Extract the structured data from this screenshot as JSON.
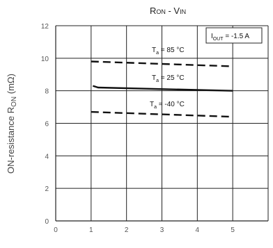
{
  "chart_data": {
    "type": "line",
    "title_main": "R",
    "title_main_sub": "ON",
    "title_sep": " - V",
    "title_sep_sub": "IN",
    "ylabel_main": "ON-resistance  R",
    "ylabel_sub": "ON",
    "ylabel_unit": "  (mΩ)",
    "xlabel": "",
    "xlim": [
      0,
      6
    ],
    "ylim": [
      0,
      12
    ],
    "x_ticks": [
      "0",
      "1",
      "2",
      "3",
      "4",
      "5"
    ],
    "y_ticks": [
      "0",
      "2",
      "4",
      "6",
      "8",
      "10",
      "12"
    ],
    "grid": true,
    "condition_main": "I",
    "condition_sub": "OUT",
    "condition_value": " = -1.5 A",
    "series": [
      {
        "name": "T",
        "sub": "a",
        "label_rest": " = 85 °C",
        "style": "dashed",
        "x": [
          1.0,
          5.0
        ],
        "y": [
          9.8,
          9.5
        ]
      },
      {
        "name": "T",
        "sub": "a",
        "label_rest": " = 25 °C",
        "style": "solid",
        "x": [
          1.05,
          1.2,
          5.0
        ],
        "y": [
          8.3,
          8.2,
          8.0
        ]
      },
      {
        "name": "T",
        "sub": "a",
        "label_rest": " = -40 °C",
        "style": "dashed",
        "x": [
          1.0,
          5.0
        ],
        "y": [
          6.7,
          6.4
        ]
      }
    ],
    "colors": {
      "line": "#111111",
      "grid": "#222222",
      "tick": "#555555"
    }
  }
}
